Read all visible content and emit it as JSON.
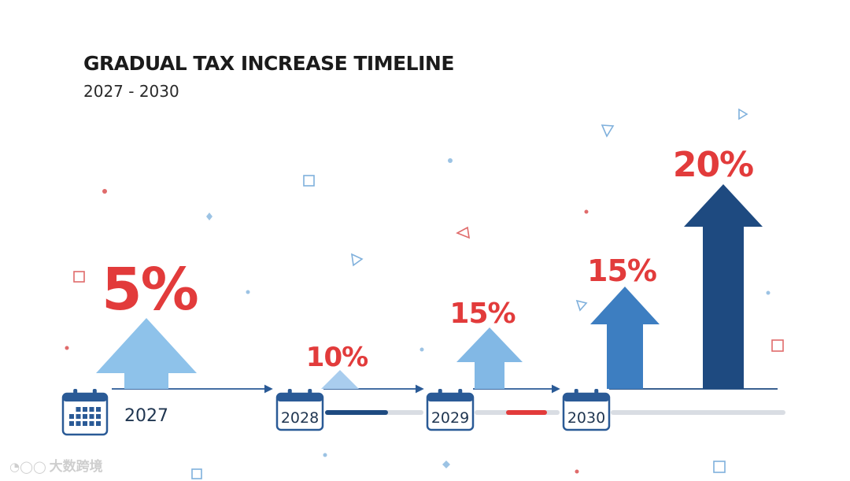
{
  "header": {
    "title": "GRADUAL TAX INCREASE TIMELINE",
    "subtitle": "2027 - 2030"
  },
  "chart_data": {
    "type": "bar",
    "title": "GRADUAL TAX INCREASE TIMELINE",
    "subtitle": "2027 - 2030",
    "marks": [
      {
        "label": "5%",
        "value": 5,
        "year": "2027",
        "color": "#8ec2ea",
        "label_color": "#e23b3b"
      },
      {
        "label": "10%",
        "value": 10,
        "year": "2028",
        "color": "#a9cdee",
        "label_color": "#e23b3b"
      },
      {
        "label": "15%",
        "value": 15,
        "year": "2029",
        "color": "#82b8e5",
        "label_color": "#e23b3b"
      },
      {
        "label": "15%",
        "value": 15,
        "year": "2030",
        "color": "#3d7ec1",
        "label_color": "#e23b3b"
      },
      {
        "label": "20%",
        "value": 20,
        "year": "2030",
        "color": "#1e4a80",
        "label_color": "#e23b3b"
      }
    ],
    "years": [
      "2027",
      "2028",
      "2029",
      "2030"
    ],
    "colors": {
      "accent_red": "#e23b3b",
      "axis_blue": "#2a5a96",
      "track_grey": "#d9dde3",
      "track_navy": "#1e4a80",
      "calendar_blue": "#2a5a96"
    },
    "grid": false,
    "legend": "none"
  },
  "watermark": {
    "text": "大数跨境"
  }
}
